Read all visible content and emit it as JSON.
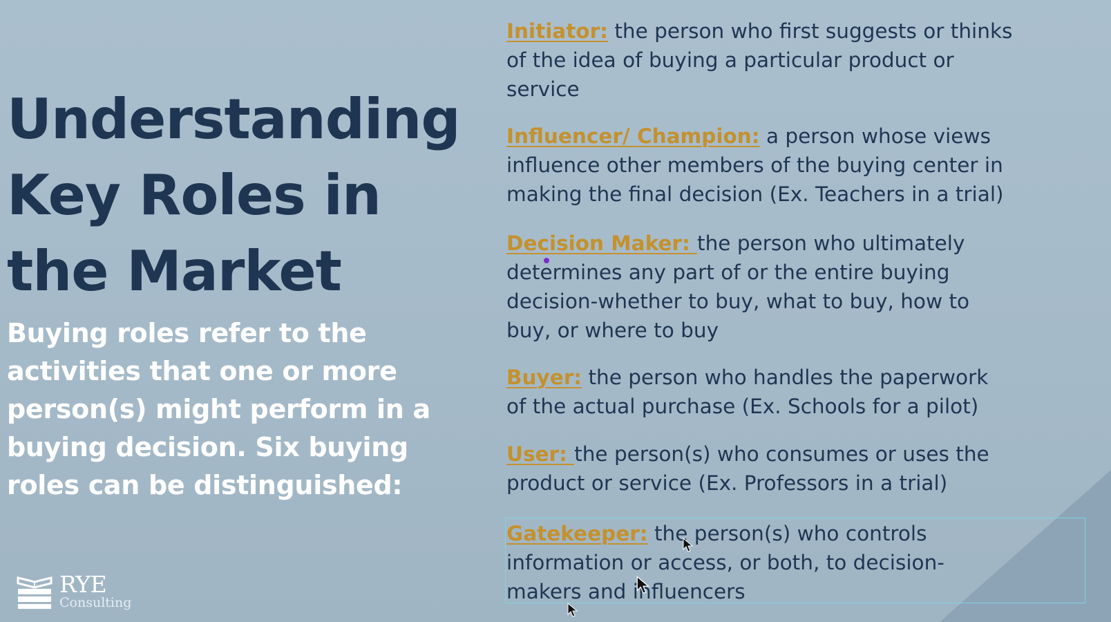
{
  "slide": {
    "title_lines": [
      "Understanding",
      "Key Roles in",
      "the Market"
    ],
    "subtitle_lines": [
      "Buying roles refer to the",
      "activities that one or more",
      "person(s) might perform in a",
      "buying decision. Six buying",
      "roles can be distinguished:"
    ],
    "roles": [
      {
        "term": "Initiator",
        "sep": ":",
        "lines": [
          " the person who first suggests or thinks",
          "of the idea of buying a particular product or",
          "service"
        ]
      },
      {
        "term": "Influencer/ Champion",
        "sep": ":",
        "lines": [
          " a person whose views",
          "influence other members of the buying center in",
          "making the final decision (Ex. Teachers in a trial)"
        ]
      },
      {
        "term": "Decision Maker",
        "sep": ": ",
        "lines": [
          "the person who ultimately",
          "determines any part of or the entire buying",
          "decision-whether to buy, what to buy, how to",
          "buy, or where to buy"
        ]
      },
      {
        "term": "Buyer",
        "sep": ":",
        "lines": [
          " the person who handles the paperwork",
          "of the actual purchase (Ex. Schools for a pilot)"
        ]
      },
      {
        "term": "User",
        "sep": ": ",
        "lines": [
          "the person(s) who consumes or uses the",
          "product or service  (Ex. Professors in a trial)"
        ]
      },
      {
        "term": "Gatekeeper",
        "sep": ":",
        "lines": [
          " the person(s) who controls",
          "information or access, or both, to decision-",
          "makers and influencers"
        ]
      }
    ]
  },
  "logo": {
    "name": "RYE",
    "subtitle": "Consulting",
    "icon": "books-icon"
  },
  "colors": {
    "background": "#a7bccb",
    "title": "#1f3652",
    "subtitle": "#ffffff",
    "term": "#c4912d",
    "body_text": "#1f3652",
    "corner_triangle": "#8ca4b6",
    "selection_border": "#7fd3df",
    "pointer_dot": "#7b2cc9"
  },
  "icons": {
    "pointer": "mouse-cursor-icon",
    "laser": "pointer-dot-icon"
  }
}
